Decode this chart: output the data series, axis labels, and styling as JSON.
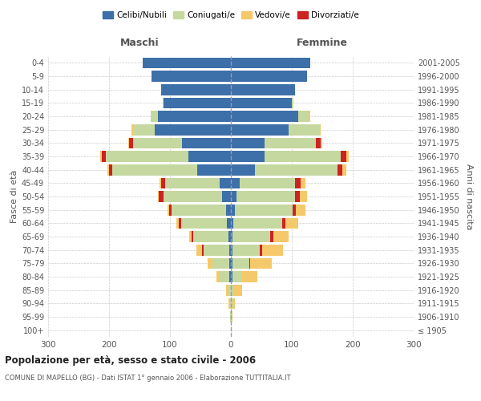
{
  "age_groups": [
    "100+",
    "95-99",
    "90-94",
    "85-89",
    "80-84",
    "75-79",
    "70-74",
    "65-69",
    "60-64",
    "55-59",
    "50-54",
    "45-49",
    "40-44",
    "35-39",
    "30-34",
    "25-29",
    "20-24",
    "15-19",
    "10-14",
    "5-9",
    "0-4"
  ],
  "birth_years": [
    "≤ 1905",
    "1906-1910",
    "1911-1915",
    "1916-1920",
    "1921-1925",
    "1926-1930",
    "1931-1935",
    "1936-1940",
    "1941-1945",
    "1946-1950",
    "1951-1955",
    "1956-1960",
    "1961-1965",
    "1966-1970",
    "1971-1975",
    "1976-1980",
    "1981-1985",
    "1986-1990",
    "1991-1995",
    "1996-2000",
    "2001-2005"
  ],
  "males_celibi": [
    0,
    0,
    0,
    0,
    2,
    2,
    3,
    4,
    6,
    8,
    15,
    18,
    55,
    70,
    80,
    125,
    120,
    110,
    115,
    130,
    145
  ],
  "males_coniugati": [
    0,
    1,
    2,
    4,
    16,
    28,
    42,
    58,
    75,
    90,
    95,
    90,
    140,
    135,
    80,
    35,
    12,
    2,
    0,
    0,
    0
  ],
  "males_vedovi": [
    0,
    0,
    2,
    4,
    6,
    8,
    10,
    5,
    4,
    3,
    2,
    2,
    2,
    2,
    2,
    3,
    0,
    0,
    0,
    0,
    0
  ],
  "males_divorziati": [
    0,
    0,
    0,
    0,
    0,
    0,
    2,
    2,
    5,
    3,
    8,
    7,
    5,
    7,
    7,
    0,
    0,
    0,
    0,
    0,
    0
  ],
  "fem_nubili": [
    0,
    0,
    0,
    0,
    2,
    2,
    3,
    3,
    4,
    6,
    9,
    15,
    40,
    55,
    55,
    95,
    110,
    100,
    105,
    125,
    130
  ],
  "fem_coniugate": [
    0,
    0,
    2,
    4,
    16,
    28,
    45,
    62,
    80,
    95,
    96,
    90,
    135,
    125,
    85,
    50,
    18,
    3,
    0,
    0,
    0
  ],
  "fem_vedove": [
    0,
    2,
    5,
    15,
    25,
    35,
    35,
    25,
    22,
    16,
    12,
    8,
    7,
    4,
    3,
    3,
    2,
    0,
    0,
    0,
    0
  ],
  "fem_divorziate": [
    0,
    0,
    0,
    0,
    0,
    2,
    3,
    5,
    5,
    5,
    8,
    10,
    8,
    10,
    7,
    0,
    0,
    0,
    0,
    0,
    0
  ],
  "color_celibi": "#3d6fa8",
  "color_coniugati": "#c5d8a0",
  "color_vedovi": "#f5c96a",
  "color_divorziati": "#cc2222",
  "xlim": [
    -300,
    300
  ],
  "xticks": [
    -300,
    -200,
    -100,
    0,
    100,
    200,
    300
  ],
  "xticklabels": [
    "300",
    "200",
    "100",
    "0",
    "100",
    "200",
    "300"
  ],
  "title": "Popolazione per età, sesso e stato civile - 2006",
  "subtitle": "COMUNE DI MAPELLO (BG) - Dati ISTAT 1° gennaio 2006 - Elaborazione TUTTITALIA.IT",
  "ylabel_left": "Fasce di età",
  "ylabel_right": "Anni di nascita",
  "label_maschi": "Maschi",
  "label_femmine": "Femmine",
  "legend_labels": [
    "Celibi/Nubili",
    "Coniugati/e",
    "Vedovi/e",
    "Divorziati/e"
  ],
  "bar_height": 0.82,
  "bg_color": "#ffffff",
  "grid_color": "#cccccc"
}
